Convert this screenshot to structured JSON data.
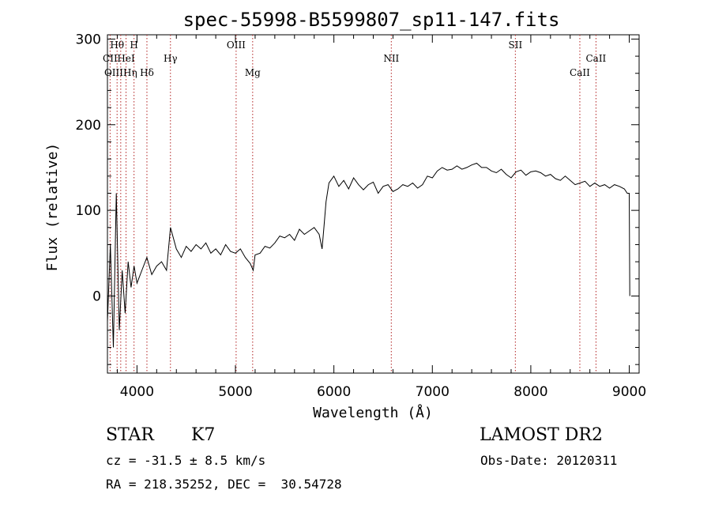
{
  "chart_data": {
    "type": "line",
    "title": "spec-55998-B5599807_sp11-147.fits",
    "xlabel": "Wavelength (Å)",
    "ylabel": "Flux (relative)",
    "xlim": [
      3700,
      9100
    ],
    "ylim": [
      -90,
      305
    ],
    "xticks": [
      4000,
      5000,
      6000,
      7000,
      8000,
      9000
    ],
    "yticks": [
      0,
      100,
      200,
      300
    ],
    "grid": false,
    "series": [
      {
        "color": "#000000",
        "x": [
          3700,
          3730,
          3760,
          3790,
          3820,
          3850,
          3880,
          3910,
          3940,
          3970,
          4000,
          4050,
          4100,
          4150,
          4200,
          4250,
          4300,
          4340,
          4400,
          4450,
          4500,
          4550,
          4600,
          4650,
          4700,
          4750,
          4800,
          4850,
          4900,
          4950,
          5000,
          5050,
          5100,
          5150,
          5180,
          5200,
          5250,
          5300,
          5350,
          5400,
          5450,
          5500,
          5550,
          5600,
          5650,
          5700,
          5750,
          5800,
          5850,
          5880,
          5900,
          5920,
          5950,
          6000,
          6050,
          6100,
          6150,
          6200,
          6250,
          6300,
          6350,
          6400,
          6450,
          6500,
          6550,
          6600,
          6650,
          6700,
          6750,
          6800,
          6850,
          6900,
          6950,
          7000,
          7050,
          7100,
          7150,
          7200,
          7250,
          7300,
          7350,
          7400,
          7450,
          7500,
          7550,
          7600,
          7650,
          7700,
          7750,
          7800,
          7850,
          7900,
          7950,
          8000,
          8050,
          8100,
          8150,
          8200,
          8250,
          8300,
          8350,
          8400,
          8450,
          8500,
          8550,
          8600,
          8650,
          8700,
          8750,
          8800,
          8850,
          8900,
          8950,
          8980,
          9000,
          9005
        ],
        "y": [
          -30,
          60,
          -60,
          120,
          -40,
          30,
          -20,
          40,
          10,
          35,
          15,
          30,
          45,
          25,
          35,
          40,
          30,
          80,
          55,
          45,
          58,
          52,
          60,
          55,
          62,
          50,
          55,
          48,
          60,
          52,
          50,
          55,
          45,
          38,
          30,
          48,
          50,
          58,
          56,
          62,
          70,
          68,
          72,
          65,
          78,
          72,
          76,
          80,
          72,
          55,
          82,
          110,
          132,
          140,
          128,
          135,
          125,
          138,
          130,
          124,
          130,
          133,
          120,
          128,
          130,
          122,
          125,
          130,
          128,
          132,
          126,
          130,
          140,
          138,
          146,
          150,
          147,
          148,
          152,
          148,
          150,
          153,
          155,
          150,
          150,
          146,
          144,
          148,
          142,
          138,
          145,
          147,
          141,
          145,
          146,
          144,
          140,
          142,
          137,
          135,
          140,
          135,
          130,
          132,
          134,
          128,
          132,
          128,
          130,
          126,
          130,
          128,
          125,
          120,
          120,
          0
        ]
      }
    ],
    "lines": [
      {
        "label": "Hθ",
        "wave": 3798,
        "row": 1
      },
      {
        "label": "H",
        "wave": 3970,
        "row": 1
      },
      {
        "label": "OIII",
        "wave": 5007,
        "row": 1
      },
      {
        "label": "NII",
        "wave": 6583,
        "row": 2
      },
      {
        "label": "SII",
        "wave": 7843,
        "row": 1
      },
      {
        "label": "CaII",
        "wave": 8662,
        "row": 2
      },
      {
        "label": "CII",
        "wave": 3727,
        "row": 2
      },
      {
        "label": "HeI",
        "wave": 3889,
        "row": 2
      },
      {
        "label": "Hγ",
        "wave": 4340,
        "row": 2
      },
      {
        "label": "OIIIHη",
        "wave": 3835,
        "row": 3
      },
      {
        "label": "Hδ",
        "wave": 4101,
        "row": 3
      },
      {
        "label": "Mg",
        "wave": 5175,
        "row": 3
      },
      {
        "label": "CaII",
        "wave": 8498,
        "row": 3
      }
    ]
  },
  "info": {
    "object_class": "STAR",
    "subclass": "K7",
    "survey": "LAMOST DR2",
    "redshift_text": "cz = -31.5 ± 8.5 km/s",
    "obs_date_text": "Obs-Date: 20120311",
    "coords_text": "RA = 218.35252, DEC =  30.54728"
  }
}
